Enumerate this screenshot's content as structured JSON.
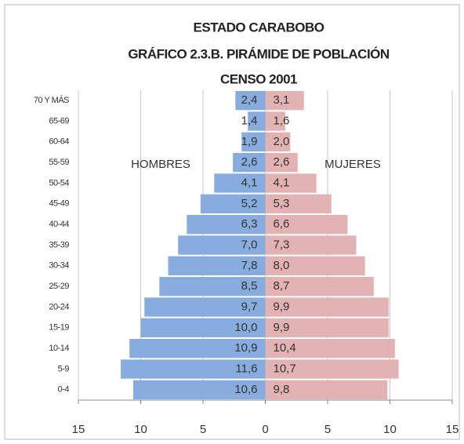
{
  "chart_data": {
    "type": "pyramid",
    "title": [
      "ESTADO CARABOBO",
      "GRÁFICO 2.3.B. PIRÁMIDE DE POBLACIÓN",
      "CENSO 2001"
    ],
    "categories": [
      "70 Y MÁS",
      "65-69",
      "60-64",
      "55-59",
      "50-54",
      "45-49",
      "40-44",
      "35-39",
      "30-34",
      "25-29",
      "20-24",
      "15-19",
      "10-14",
      "5-9",
      "0-4"
    ],
    "series": [
      {
        "name": "HOMBRES",
        "color": "#87acde",
        "values": [
          2.4,
          1.4,
          1.9,
          2.6,
          4.1,
          5.2,
          6.3,
          7.0,
          7.8,
          8.5,
          9.7,
          10.0,
          10.9,
          11.6,
          10.6
        ],
        "value_labels": [
          "2,4",
          "1,4",
          "1,9",
          "2,6",
          "4,1",
          "5,2",
          "6,3",
          "7,0",
          "7,8",
          "8,5",
          "9,7",
          "10,0",
          "10,9",
          "11,6",
          "10,6"
        ]
      },
      {
        "name": "MUJERES",
        "color": "#e3b3b4",
        "values": [
          3.1,
          1.6,
          2.0,
          2.6,
          4.1,
          5.3,
          6.6,
          7.3,
          8.0,
          8.7,
          9.9,
          9.9,
          10.4,
          10.7,
          9.8
        ],
        "value_labels": [
          "3,1",
          "1,6",
          "2,0",
          "2,6",
          "4,1",
          "5,3",
          "6,6",
          "7,3",
          "8,0",
          "8,7",
          "9,9",
          "9,9",
          "10,4",
          "10,7",
          "9,8"
        ]
      }
    ],
    "xlim": [
      -15,
      15
    ],
    "xticks": [
      {
        "value": -15,
        "label": "15"
      },
      {
        "value": -10,
        "label": "10"
      },
      {
        "value": -5,
        "label": "5"
      },
      0,
      5,
      10,
      15
    ],
    "grid": true
  }
}
